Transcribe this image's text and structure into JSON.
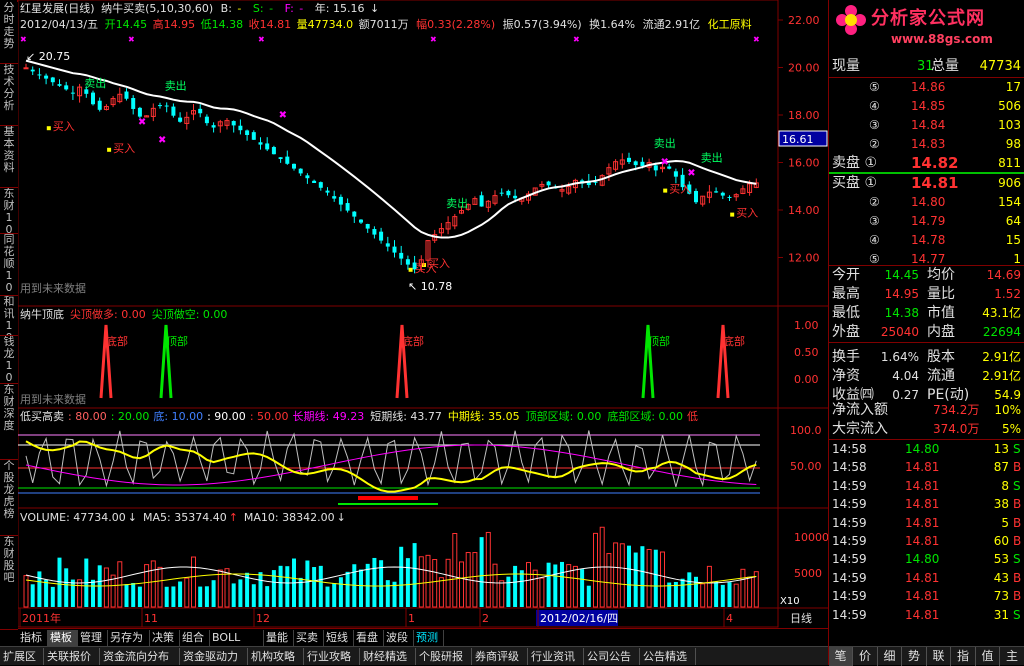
{
  "left_tabs": [
    "分时走势",
    "技术分析",
    "基本资料",
    "东财10",
    "同花顺10",
    "和讯10",
    "钱龙10",
    "东财深度",
    "个股龙虎榜",
    "东财股吧"
  ],
  "header": {
    "stock": "红星发展(日线)",
    "indicator": "纳牛买卖(5,10,30,60)",
    "b": "B:",
    "s": "S:",
    "f": "F:",
    "year": "年: 15.16",
    "date": "2012/04/13/五",
    "open": "开14.45",
    "high": "高14.95",
    "low": "低14.38",
    "close": "收14.81",
    "vol": "量47734.0",
    "amount": "额7011万",
    "change": "幅0.33(2.28%)",
    "amp": "振0.57(3.94%)",
    "turnover": "换1.64%",
    "float": "流通2.91亿",
    "sector": "化工原料"
  },
  "main_panel": {
    "max_label": "20.75",
    "min_label": "10.78",
    "sell_label": "卖出",
    "buy_label": "买入",
    "watermark": "用到未来数据",
    "price_tag": "16.61",
    "axis": [
      "22.00",
      "20.00",
      "18.00",
      "16.00",
      "14.00",
      "12.00"
    ]
  },
  "panel2": {
    "title": "纳牛顶底",
    "item1": "尖顶做多: 0.00",
    "item2": "尖顶做空: 0.00",
    "bottom": "底部",
    "top": "顶部",
    "watermark": "用到未来数据",
    "axis": [
      "1.00",
      "0.50",
      "0.00"
    ]
  },
  "panel3": {
    "title": "低买高卖",
    "v1": ": 80.00",
    "v2": ": 20.00",
    "v3": "底: 10.00",
    "v4": ": 90.00",
    "v5": ": 50.00",
    "long": "长期线: 49.23",
    "short": "短期线: 43.77",
    "mid": "中期线: 35.05",
    "topzone": "顶部区域: 0.00",
    "botzone": "底部区域: 0.00",
    "low": "低",
    "axis": [
      "100.0",
      "50.00"
    ]
  },
  "panel4": {
    "vol": "VOLUME: 47734.00",
    "ma5": "MA5: 35374.40",
    "ma10": "MA10: 38342.00",
    "axis": [
      "10000",
      "5000"
    ],
    "x10": "X10"
  },
  "xaxis": {
    "labels": [
      "2011年",
      "11",
      "12",
      "1",
      "2",
      "2012/02/16/四",
      "4"
    ],
    "period": "日线"
  },
  "tabs1": [
    "指标",
    "模板",
    "管理",
    "另存为",
    "决策",
    "组合",
    "BOLL",
    "量能",
    "买卖",
    "短线",
    "看盘",
    "波段",
    "预测"
  ],
  "tabs2": [
    "扩展区",
    "关联报价",
    "资金流向分布",
    "资金驱动力",
    "机构攻略",
    "行业攻略",
    "财经精选",
    "个股研报",
    "券商评级",
    "行业资讯",
    "公司公告",
    "公告精选"
  ],
  "logo": {
    "text": "分析家公式网",
    "url": "www.88gs.com"
  },
  "quote": {
    "xianliang_label": "现量",
    "xianliang": "31",
    "zongliang_label": "总量",
    "zongliang": "47734",
    "sells": [
      {
        "n": "⑤",
        "p": "14.86",
        "v": "17"
      },
      {
        "n": "④",
        "p": "14.85",
        "v": "506"
      },
      {
        "n": "③",
        "p": "14.84",
        "v": "103"
      },
      {
        "n": "②",
        "p": "14.83",
        "v": "98"
      },
      {
        "n": "卖盘 ①",
        "p": "14.82",
        "v": "811"
      }
    ],
    "buys": [
      {
        "n": "买盘 ①",
        "p": "14.81",
        "v": "906"
      },
      {
        "n": "②",
        "p": "14.80",
        "v": "154"
      },
      {
        "n": "③",
        "p": "14.79",
        "v": "64"
      },
      {
        "n": "④",
        "p": "14.78",
        "v": "15"
      },
      {
        "n": "⑤",
        "p": "14.77",
        "v": "1"
      }
    ],
    "stats": [
      [
        "今开",
        "14.45",
        "均价",
        "14.69"
      ],
      [
        "最高",
        "14.95",
        "量比",
        "1.52"
      ],
      [
        "最低",
        "14.38",
        "市值",
        "43.1亿"
      ],
      [
        "外盘",
        "25040",
        "内盘",
        "22694"
      ],
      [
        "换手",
        "1.64%",
        "股本",
        "2.91亿"
      ],
      [
        "净资",
        "4.04",
        "流通",
        "2.91亿"
      ],
      [
        "收益㈣",
        "0.27",
        "PE(动)",
        "54.9"
      ]
    ],
    "inflow": [
      "净流入额",
      "734.2万",
      "10%"
    ],
    "bigflow": [
      "大宗流入",
      "374.0万",
      "5%"
    ],
    "ticks": [
      [
        "14:58",
        "14.80",
        "13",
        "S"
      ],
      [
        "14:58",
        "14.81",
        "87",
        "B"
      ],
      [
        "14:59",
        "14.81",
        "8",
        "S"
      ],
      [
        "14:59",
        "14.81",
        "38",
        "B"
      ],
      [
        "14:59",
        "14.81",
        "5",
        "B"
      ],
      [
        "14:59",
        "14.81",
        "60",
        "B"
      ],
      [
        "14:59",
        "14.80",
        "53",
        "S"
      ],
      [
        "14:59",
        "14.81",
        "43",
        "B"
      ],
      [
        "14:59",
        "14.81",
        "73",
        "B"
      ],
      [
        "14:59",
        "14.81",
        "31",
        "S"
      ]
    ]
  },
  "right_tabs": [
    "笔",
    "价",
    "细",
    "势",
    "联",
    "指",
    "值",
    "主"
  ],
  "colors": {
    "up": "#ff3232",
    "down": "#00ffff",
    "green": "#00e600",
    "yellow": "#ffff00",
    "axis": "#800000",
    "white": "#ffffff"
  }
}
